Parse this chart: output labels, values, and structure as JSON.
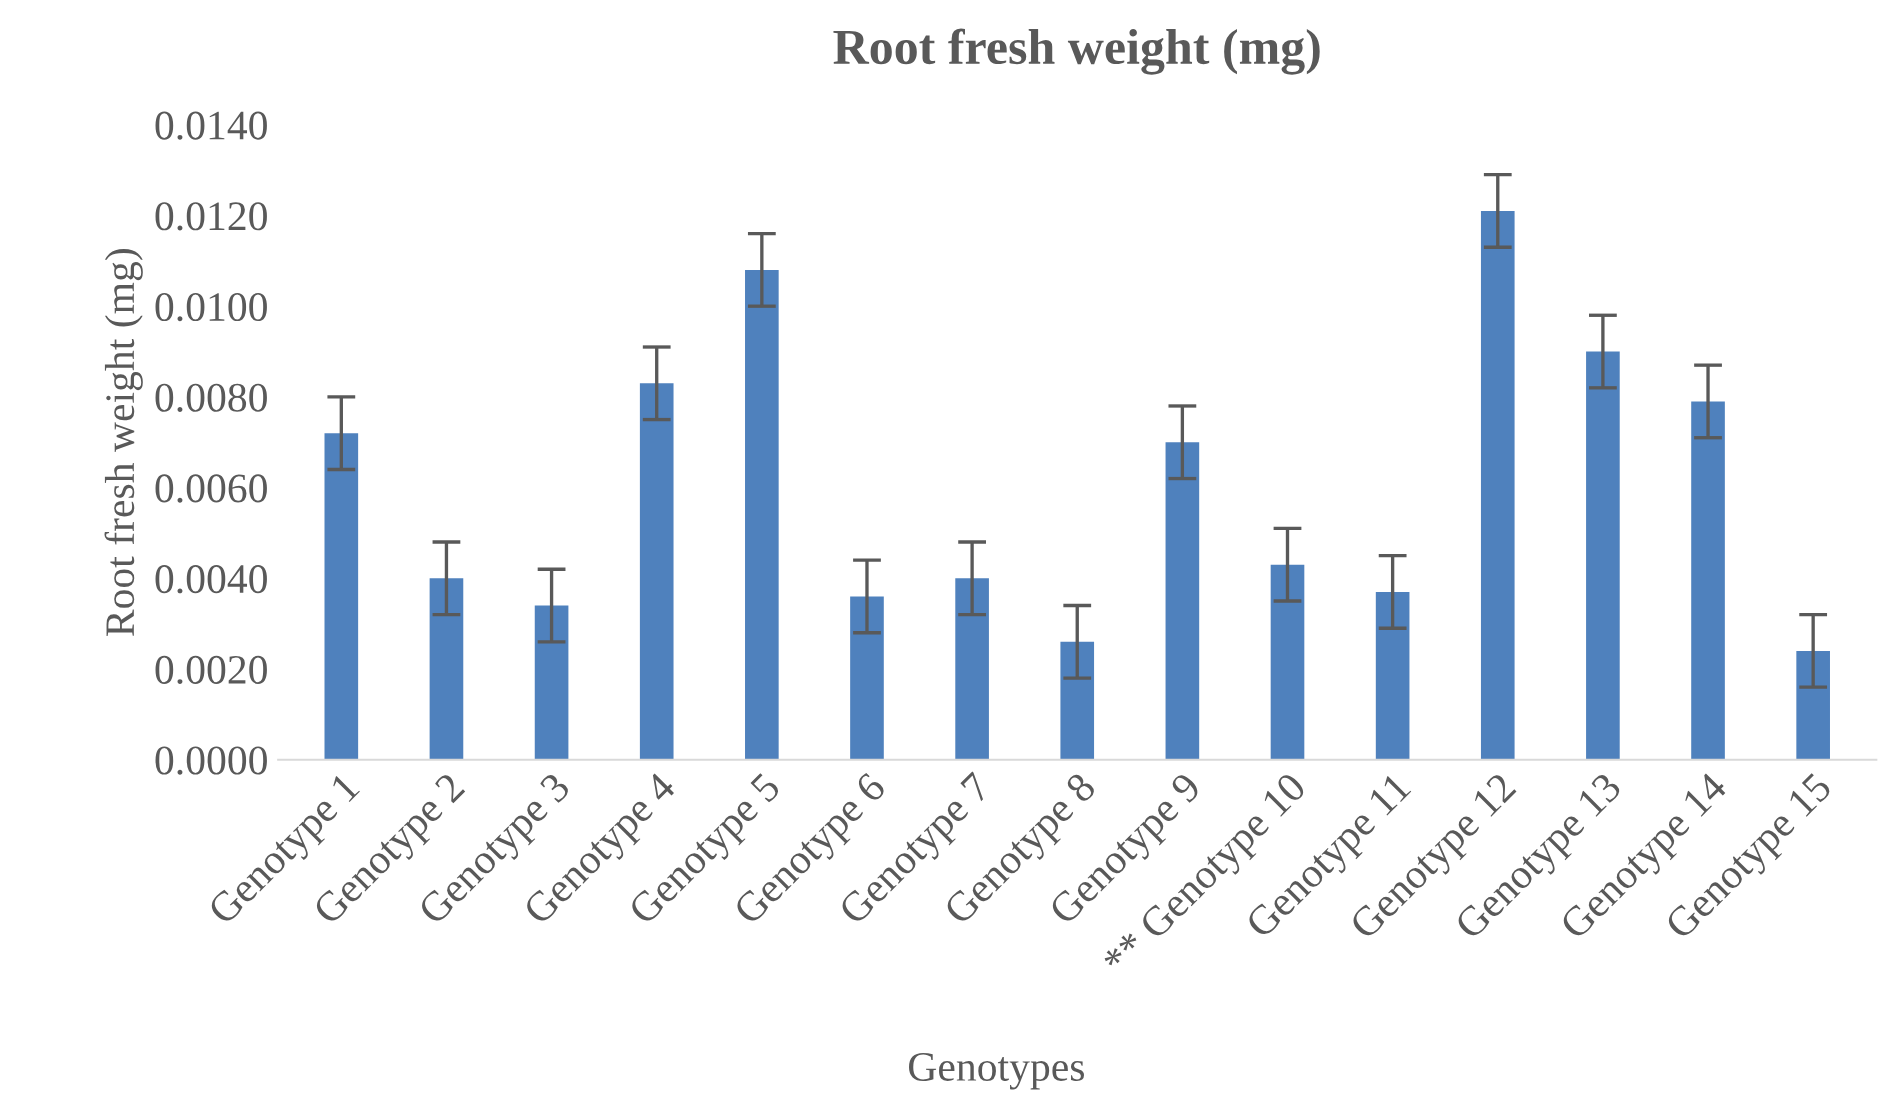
{
  "chart_data": {
    "type": "bar",
    "title": "Root fresh weight (mg)",
    "xlabel": "Genotypes",
    "ylabel": "Root fresh weight (mg)",
    "categories": [
      "Genotype 1",
      "Genotype 2",
      "Genotype 3",
      "Genotype 4",
      "Genotype 5",
      "Genotype 6",
      "Genotype 7",
      "Genotype 8",
      "Genotype 9",
      "** Genotype 10",
      "Genotype 11",
      "Genotype 12",
      "Genotype 13",
      "Genotype 14",
      "Genotype 15"
    ],
    "values": [
      0.0072,
      0.004,
      0.0034,
      0.0083,
      0.0108,
      0.0036,
      0.004,
      0.0026,
      0.007,
      0.0043,
      0.0037,
      0.0121,
      0.009,
      0.0079,
      0.0024
    ],
    "errors": [
      0.0008,
      0.0008,
      0.0008,
      0.0008,
      0.0008,
      0.0008,
      0.0008,
      0.0008,
      0.0008,
      0.0008,
      0.0008,
      0.0008,
      0.0008,
      0.0008,
      0.0008
    ],
    "color": "#4f81bd",
    "ylim": [
      0,
      0.014
    ],
    "yticks": [
      {
        "value": 0,
        "label": "0.0000"
      },
      {
        "value": 0.002,
        "label": "0.0020"
      },
      {
        "value": 0.004,
        "label": "0.0040"
      },
      {
        "value": 0.006,
        "label": "0.0060"
      },
      {
        "value": 0.008,
        "label": "0.0080"
      },
      {
        "value": 0.01,
        "label": "0.0100"
      },
      {
        "value": 0.012,
        "label": "0.0120"
      },
      {
        "value": 0.014,
        "label": "0.0140"
      }
    ],
    "grid": false,
    "legend": false
  }
}
